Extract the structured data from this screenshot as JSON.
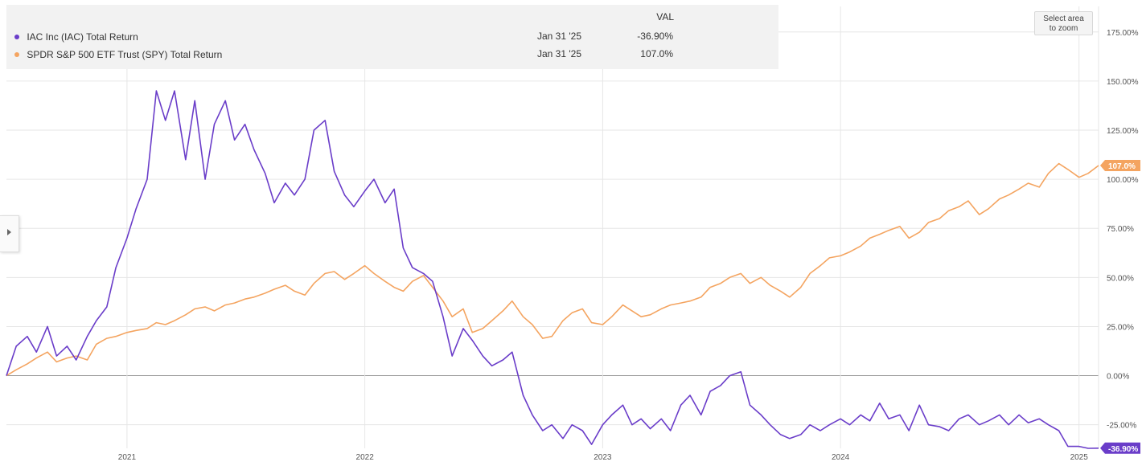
{
  "legend": {
    "header": "VAL",
    "rows": [
      {
        "name": "IAC Inc (IAC) Total Return",
        "date": "Jan 31 '25",
        "value": "-36.90%",
        "color": "#6a3dc9"
      },
      {
        "name": "SPDR S&P 500 ETF Trust (SPY) Total Return",
        "date": "Jan 31 '25",
        "value": "107.0%",
        "color": "#f4a460"
      }
    ]
  },
  "zoom_button": {
    "line1": "Select area",
    "line2": "to zoom"
  },
  "chart_data": {
    "type": "line",
    "x_range": [
      "2020-06-30",
      "2025-01-31"
    ],
    "ylim": [
      -37,
      188
    ],
    "grid": true,
    "y_ticks": [
      {
        "value": 175,
        "label": "175.00%"
      },
      {
        "value": 150,
        "label": "150.00%"
      },
      {
        "value": 125,
        "label": "125.00%"
      },
      {
        "value": 100,
        "label": "100.00%"
      },
      {
        "value": 75,
        "label": "75.00%"
      },
      {
        "value": 50,
        "label": "50.00%"
      },
      {
        "value": 25,
        "label": "25.00%"
      },
      {
        "value": 0,
        "label": "0.00%"
      },
      {
        "value": -25,
        "label": "-25.00%"
      }
    ],
    "x_ticks": [
      {
        "date": "2021-01-01",
        "label": "2021"
      },
      {
        "date": "2022-01-01",
        "label": "2022"
      },
      {
        "date": "2023-01-01",
        "label": "2023"
      },
      {
        "date": "2024-01-01",
        "label": "2024"
      },
      {
        "date": "2025-01-01",
        "label": "2025"
      }
    ],
    "series": [
      {
        "name": "IAC Inc (IAC) Total Return",
        "color": "#6a3dc9",
        "end_label": "-36.90%",
        "points": [
          [
            "2020-06-30",
            0
          ],
          [
            "2020-07-15",
            15
          ],
          [
            "2020-08-01",
            20
          ],
          [
            "2020-08-15",
            12
          ],
          [
            "2020-09-01",
            25
          ],
          [
            "2020-09-15",
            10
          ],
          [
            "2020-10-01",
            15
          ],
          [
            "2020-10-15",
            8
          ],
          [
            "2020-11-01",
            20
          ],
          [
            "2020-11-15",
            28
          ],
          [
            "2020-12-01",
            35
          ],
          [
            "2020-12-15",
            55
          ],
          [
            "2021-01-01",
            70
          ],
          [
            "2021-01-15",
            85
          ],
          [
            "2021-02-01",
            100
          ],
          [
            "2021-02-15",
            145
          ],
          [
            "2021-03-01",
            130
          ],
          [
            "2021-03-15",
            145
          ],
          [
            "2021-04-01",
            110
          ],
          [
            "2021-04-15",
            140
          ],
          [
            "2021-05-01",
            100
          ],
          [
            "2021-05-15",
            128
          ],
          [
            "2021-06-01",
            140
          ],
          [
            "2021-06-15",
            120
          ],
          [
            "2021-07-01",
            128
          ],
          [
            "2021-07-15",
            115
          ],
          [
            "2021-08-01",
            103
          ],
          [
            "2021-08-15",
            88
          ],
          [
            "2021-09-01",
            98
          ],
          [
            "2021-09-15",
            92
          ],
          [
            "2021-10-01",
            100
          ],
          [
            "2021-10-15",
            125
          ],
          [
            "2021-11-01",
            130
          ],
          [
            "2021-11-15",
            104
          ],
          [
            "2021-12-01",
            92
          ],
          [
            "2021-12-15",
            86
          ],
          [
            "2022-01-01",
            94
          ],
          [
            "2022-01-15",
            100
          ],
          [
            "2022-02-01",
            88
          ],
          [
            "2022-02-15",
            95
          ],
          [
            "2022-03-01",
            65
          ],
          [
            "2022-03-15",
            55
          ],
          [
            "2022-04-01",
            52
          ],
          [
            "2022-04-15",
            48
          ],
          [
            "2022-05-01",
            30
          ],
          [
            "2022-05-15",
            10
          ],
          [
            "2022-06-01",
            24
          ],
          [
            "2022-06-15",
            18
          ],
          [
            "2022-07-01",
            10
          ],
          [
            "2022-07-15",
            5
          ],
          [
            "2022-08-01",
            8
          ],
          [
            "2022-08-15",
            12
          ],
          [
            "2022-09-01",
            -10
          ],
          [
            "2022-09-15",
            -20
          ],
          [
            "2022-10-01",
            -28
          ],
          [
            "2022-10-15",
            -25
          ],
          [
            "2022-11-01",
            -32
          ],
          [
            "2022-11-15",
            -25
          ],
          [
            "2022-12-01",
            -28
          ],
          [
            "2022-12-15",
            -35
          ],
          [
            "2023-01-01",
            -25
          ],
          [
            "2023-01-15",
            -20
          ],
          [
            "2023-02-01",
            -15
          ],
          [
            "2023-02-15",
            -25
          ],
          [
            "2023-03-01",
            -22
          ],
          [
            "2023-03-15",
            -27
          ],
          [
            "2023-04-01",
            -22
          ],
          [
            "2023-04-15",
            -28
          ],
          [
            "2023-05-01",
            -15
          ],
          [
            "2023-05-15",
            -10
          ],
          [
            "2023-06-01",
            -20
          ],
          [
            "2023-06-15",
            -8
          ],
          [
            "2023-07-01",
            -5
          ],
          [
            "2023-07-15",
            0
          ],
          [
            "2023-08-01",
            2
          ],
          [
            "2023-08-15",
            -15
          ],
          [
            "2023-09-01",
            -20
          ],
          [
            "2023-09-15",
            -25
          ],
          [
            "2023-10-01",
            -30
          ],
          [
            "2023-10-15",
            -32
          ],
          [
            "2023-11-01",
            -30
          ],
          [
            "2023-11-15",
            -25
          ],
          [
            "2023-12-01",
            -28
          ],
          [
            "2023-12-15",
            -25
          ],
          [
            "2024-01-01",
            -22
          ],
          [
            "2024-01-15",
            -25
          ],
          [
            "2024-02-01",
            -20
          ],
          [
            "2024-02-15",
            -23
          ],
          [
            "2024-03-01",
            -14
          ],
          [
            "2024-03-15",
            -22
          ],
          [
            "2024-04-01",
            -20
          ],
          [
            "2024-04-15",
            -28
          ],
          [
            "2024-05-01",
            -15
          ],
          [
            "2024-05-15",
            -25
          ],
          [
            "2024-06-01",
            -26
          ],
          [
            "2024-06-15",
            -28
          ],
          [
            "2024-07-01",
            -22
          ],
          [
            "2024-07-15",
            -20
          ],
          [
            "2024-08-01",
            -25
          ],
          [
            "2024-08-15",
            -23
          ],
          [
            "2024-09-01",
            -20
          ],
          [
            "2024-09-15",
            -25
          ],
          [
            "2024-10-01",
            -20
          ],
          [
            "2024-10-15",
            -24
          ],
          [
            "2024-11-01",
            -22
          ],
          [
            "2024-11-15",
            -25
          ],
          [
            "2024-12-01",
            -28
          ],
          [
            "2024-12-15",
            -36
          ],
          [
            "2025-01-01",
            -36
          ],
          [
            "2025-01-15",
            -37
          ],
          [
            "2025-01-31",
            -36.9
          ]
        ]
      },
      {
        "name": "SPDR S&P 500 ETF Trust (SPY) Total Return",
        "color": "#f4a460",
        "end_label": "107.0%",
        "points": [
          [
            "2020-06-30",
            0
          ],
          [
            "2020-07-15",
            3
          ],
          [
            "2020-08-01",
            6
          ],
          [
            "2020-08-15",
            9
          ],
          [
            "2020-09-01",
            12
          ],
          [
            "2020-09-15",
            7
          ],
          [
            "2020-10-01",
            9
          ],
          [
            "2020-10-15",
            10
          ],
          [
            "2020-11-01",
            8
          ],
          [
            "2020-11-15",
            16
          ],
          [
            "2020-12-01",
            19
          ],
          [
            "2020-12-15",
            20
          ],
          [
            "2021-01-01",
            22
          ],
          [
            "2021-01-15",
            23
          ],
          [
            "2021-02-01",
            24
          ],
          [
            "2021-02-15",
            27
          ],
          [
            "2021-03-01",
            26
          ],
          [
            "2021-03-15",
            28
          ],
          [
            "2021-04-01",
            31
          ],
          [
            "2021-04-15",
            34
          ],
          [
            "2021-05-01",
            35
          ],
          [
            "2021-05-15",
            33
          ],
          [
            "2021-06-01",
            36
          ],
          [
            "2021-06-15",
            37
          ],
          [
            "2021-07-01",
            39
          ],
          [
            "2021-07-15",
            40
          ],
          [
            "2021-08-01",
            42
          ],
          [
            "2021-08-15",
            44
          ],
          [
            "2021-09-01",
            46
          ],
          [
            "2021-09-15",
            43
          ],
          [
            "2021-10-01",
            41
          ],
          [
            "2021-10-15",
            47
          ],
          [
            "2021-11-01",
            52
          ],
          [
            "2021-11-15",
            53
          ],
          [
            "2021-12-01",
            49
          ],
          [
            "2021-12-15",
            52
          ],
          [
            "2022-01-01",
            56
          ],
          [
            "2022-01-15",
            52
          ],
          [
            "2022-02-01",
            48
          ],
          [
            "2022-02-15",
            45
          ],
          [
            "2022-03-01",
            43
          ],
          [
            "2022-03-15",
            48
          ],
          [
            "2022-04-01",
            51
          ],
          [
            "2022-04-15",
            45
          ],
          [
            "2022-05-01",
            38
          ],
          [
            "2022-05-15",
            30
          ],
          [
            "2022-06-01",
            34
          ],
          [
            "2022-06-15",
            22
          ],
          [
            "2022-07-01",
            24
          ],
          [
            "2022-07-15",
            28
          ],
          [
            "2022-08-01",
            33
          ],
          [
            "2022-08-15",
            38
          ],
          [
            "2022-09-01",
            30
          ],
          [
            "2022-09-15",
            26
          ],
          [
            "2022-10-01",
            19
          ],
          [
            "2022-10-15",
            20
          ],
          [
            "2022-11-01",
            28
          ],
          [
            "2022-11-15",
            32
          ],
          [
            "2022-12-01",
            34
          ],
          [
            "2022-12-15",
            27
          ],
          [
            "2023-01-01",
            26
          ],
          [
            "2023-01-15",
            30
          ],
          [
            "2023-02-01",
            36
          ],
          [
            "2023-02-15",
            33
          ],
          [
            "2023-03-01",
            30
          ],
          [
            "2023-03-15",
            31
          ],
          [
            "2023-04-01",
            34
          ],
          [
            "2023-04-15",
            36
          ],
          [
            "2023-05-01",
            37
          ],
          [
            "2023-05-15",
            38
          ],
          [
            "2023-06-01",
            40
          ],
          [
            "2023-06-15",
            45
          ],
          [
            "2023-07-01",
            47
          ],
          [
            "2023-07-15",
            50
          ],
          [
            "2023-08-01",
            52
          ],
          [
            "2023-08-15",
            47
          ],
          [
            "2023-09-01",
            50
          ],
          [
            "2023-09-15",
            46
          ],
          [
            "2023-10-01",
            43
          ],
          [
            "2023-10-15",
            40
          ],
          [
            "2023-11-01",
            45
          ],
          [
            "2023-11-15",
            52
          ],
          [
            "2023-12-01",
            56
          ],
          [
            "2023-12-15",
            60
          ],
          [
            "2024-01-01",
            61
          ],
          [
            "2024-01-15",
            63
          ],
          [
            "2024-02-01",
            66
          ],
          [
            "2024-02-15",
            70
          ],
          [
            "2024-03-01",
            72
          ],
          [
            "2024-03-15",
            74
          ],
          [
            "2024-04-01",
            76
          ],
          [
            "2024-04-15",
            70
          ],
          [
            "2024-05-01",
            73
          ],
          [
            "2024-05-15",
            78
          ],
          [
            "2024-06-01",
            80
          ],
          [
            "2024-06-15",
            84
          ],
          [
            "2024-07-01",
            86
          ],
          [
            "2024-07-15",
            89
          ],
          [
            "2024-08-01",
            82
          ],
          [
            "2024-08-15",
            85
          ],
          [
            "2024-09-01",
            90
          ],
          [
            "2024-09-15",
            92
          ],
          [
            "2024-10-01",
            95
          ],
          [
            "2024-10-15",
            98
          ],
          [
            "2024-11-01",
            96
          ],
          [
            "2024-11-15",
            103
          ],
          [
            "2024-12-01",
            108
          ],
          [
            "2024-12-15",
            105
          ],
          [
            "2025-01-01",
            101
          ],
          [
            "2025-01-15",
            103
          ],
          [
            "2025-01-31",
            107
          ]
        ]
      }
    ]
  }
}
